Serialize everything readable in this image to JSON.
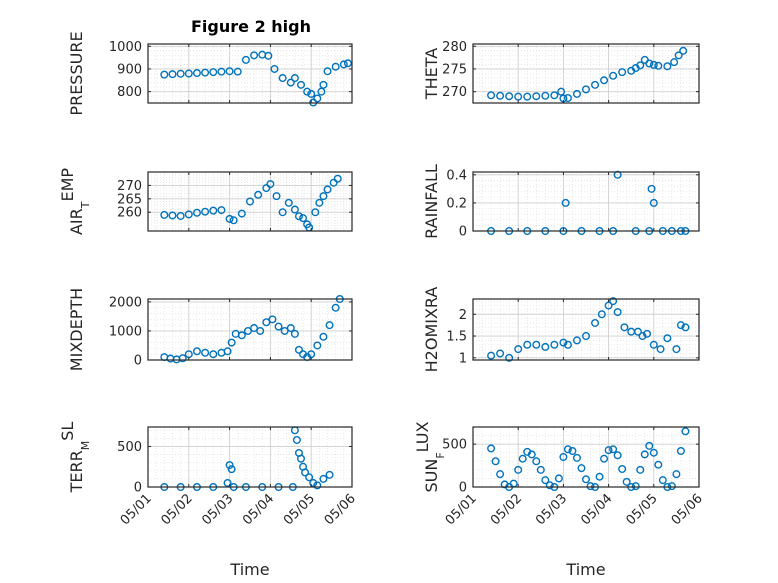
{
  "figure": {
    "title": "Figure 2 high"
  },
  "colors": {
    "marker": "#0072BD",
    "axes": "#262626",
    "grid": "#cfcfcf"
  },
  "chart_data": [
    {
      "type": "scatter",
      "id": "pressure",
      "ylabel": "PRESSURE",
      "xlabel": "",
      "ylim": [
        750,
        1010
      ],
      "yticks": [
        800,
        900,
        1000
      ],
      "yticklabels": [
        "800",
        "900",
        "1000"
      ],
      "xlim": [
        0,
        5
      ],
      "xticks": [
        0,
        1,
        2,
        3,
        4,
        5
      ],
      "xticklabels": [
        "05/01",
        "05/02",
        "05/03",
        "05/04",
        "05/05",
        "05/06"
      ],
      "series": [
        {
          "x": [
            0.4,
            0.6,
            0.8,
            1.0,
            1.2,
            1.4,
            1.6,
            1.8,
            2.0,
            2.2,
            2.4,
            2.6,
            2.8,
            2.95,
            3.1,
            3.3,
            3.5,
            3.6,
            3.75,
            3.9,
            4.0,
            4.05,
            4.15,
            4.25,
            4.3,
            4.4,
            4.6,
            4.8,
            4.9
          ],
          "y": [
            875,
            877,
            879,
            880,
            882,
            884,
            886,
            888,
            890,
            888,
            940,
            960,
            963,
            958,
            900,
            860,
            840,
            860,
            830,
            800,
            790,
            752,
            770,
            800,
            830,
            890,
            910,
            920,
            925
          ]
        }
      ]
    },
    {
      "type": "scatter",
      "id": "theta",
      "ylabel": "THETA",
      "xlabel": "",
      "ylim": [
        267.5,
        280.5
      ],
      "yticks": [
        270,
        275,
        280
      ],
      "yticklabels": [
        "270",
        "275",
        "280"
      ],
      "xlim": [
        0,
        5
      ],
      "xticks": [
        0,
        1,
        2,
        3,
        4,
        5
      ],
      "xticklabels": [
        "05/01",
        "05/02",
        "05/03",
        "05/04",
        "05/05",
        "05/06"
      ],
      "series": [
        {
          "x": [
            0.4,
            0.6,
            0.8,
            1.0,
            1.2,
            1.4,
            1.6,
            1.8,
            1.95,
            2.0,
            2.1,
            2.3,
            2.5,
            2.7,
            2.9,
            3.1,
            3.3,
            3.5,
            3.6,
            3.7,
            3.8,
            3.9,
            4.0,
            4.1,
            4.3,
            4.45,
            4.55,
            4.65
          ],
          "y": [
            269.2,
            269.1,
            269.0,
            268.9,
            268.9,
            269.0,
            269.1,
            269.2,
            270,
            268.5,
            268.6,
            269.5,
            270.5,
            271.5,
            272.5,
            273.5,
            274.3,
            274.6,
            275.2,
            275.8,
            277,
            276.2,
            275.9,
            275.7,
            275.6,
            276.5,
            278,
            279
          ]
        }
      ]
    },
    {
      "type": "scatter",
      "id": "air_temp",
      "ylabel": "AIR_TEMP",
      "xlabel": "",
      "ylim": [
        253,
        275
      ],
      "yticks": [
        260,
        265,
        270
      ],
      "yticklabels": [
        "260",
        "265",
        "270"
      ],
      "xlim": [
        0,
        5
      ],
      "xticks": [
        0,
        1,
        2,
        3,
        4,
        5
      ],
      "xticklabels": [
        "05/01",
        "05/02",
        "05/03",
        "05/04",
        "05/05",
        "05/06"
      ],
      "series": [
        {
          "x": [
            0.4,
            0.6,
            0.8,
            1.0,
            1.2,
            1.4,
            1.6,
            1.8,
            2.0,
            2.1,
            2.3,
            2.5,
            2.7,
            2.9,
            3.0,
            3.15,
            3.3,
            3.45,
            3.6,
            3.7,
            3.8,
            3.9,
            3.95,
            4.1,
            4.2,
            4.3,
            4.4,
            4.55,
            4.65
          ],
          "y": [
            259,
            258.8,
            258.6,
            259.2,
            259.8,
            260.2,
            260.6,
            260.8,
            257.5,
            257,
            259.5,
            264,
            266.5,
            269,
            270.5,
            266,
            260,
            263.5,
            261,
            258.5,
            257.8,
            255.5,
            254.3,
            260,
            263.5,
            266,
            268.5,
            271,
            272.5
          ]
        }
      ]
    },
    {
      "type": "scatter",
      "id": "rainfall",
      "ylabel": "RAINFALL",
      "xlabel": "",
      "ylim": [
        0,
        0.42
      ],
      "yticks": [
        0,
        0.2,
        0.4
      ],
      "yticklabels": [
        "0",
        "0.2",
        "0.4"
      ],
      "xlim": [
        0,
        5
      ],
      "xticks": [
        0,
        1,
        2,
        3,
        4,
        5
      ],
      "xticklabels": [
        "05/01",
        "05/02",
        "05/03",
        "05/04",
        "05/05",
        "05/06"
      ],
      "series": [
        {
          "x": [
            0.4,
            0.8,
            1.2,
            1.6,
            2.0,
            2.05,
            2.4,
            2.8,
            3.1,
            3.2,
            3.6,
            3.9,
            3.95,
            4.0,
            4.2,
            4.4,
            4.6,
            4.7
          ],
          "y": [
            0,
            0,
            0,
            0,
            0,
            0.2,
            0,
            0,
            0,
            0.4,
            0,
            0,
            0.3,
            0.2,
            0,
            0,
            0,
            0
          ]
        }
      ]
    },
    {
      "type": "scatter",
      "id": "mixdepth",
      "ylabel": "MIXDEPTH",
      "xlabel": "",
      "ylim": [
        0,
        2100
      ],
      "yticks": [
        0,
        1000,
        2000
      ],
      "yticklabels": [
        "0",
        "1000",
        "2000"
      ],
      "xlim": [
        0,
        5
      ],
      "xticks": [
        0,
        1,
        2,
        3,
        4,
        5
      ],
      "xticklabels": [
        "05/01",
        "05/02",
        "05/03",
        "05/04",
        "05/05",
        "05/06"
      ],
      "series": [
        {
          "x": [
            0.4,
            0.55,
            0.7,
            0.85,
            1.0,
            1.2,
            1.4,
            1.6,
            1.8,
            1.95,
            2.05,
            2.15,
            2.3,
            2.45,
            2.6,
            2.75,
            2.9,
            3.05,
            3.2,
            3.35,
            3.5,
            3.6,
            3.7,
            3.8,
            3.9,
            4.0,
            4.15,
            4.3,
            4.45,
            4.6,
            4.7
          ],
          "y": [
            100,
            50,
            20,
            60,
            200,
            300,
            250,
            200,
            250,
            300,
            600,
            900,
            850,
            1000,
            1100,
            1000,
            1300,
            1400,
            1150,
            1000,
            1100,
            900,
            350,
            200,
            100,
            200,
            500,
            800,
            1200,
            1800,
            2100
          ]
        }
      ]
    },
    {
      "type": "scatter",
      "id": "h2omixra",
      "ylabel": "H2OMIXRA",
      "xlabel": "",
      "ylim": [
        0.95,
        2.35
      ],
      "yticks": [
        1,
        1.5,
        2
      ],
      "yticklabels": [
        "1",
        "1.5",
        "2"
      ],
      "xlim": [
        0,
        5
      ],
      "xticks": [
        0,
        1,
        2,
        3,
        4,
        5
      ],
      "xticklabels": [
        "05/01",
        "05/02",
        "05/03",
        "05/04",
        "05/05",
        "05/06"
      ],
      "series": [
        {
          "x": [
            0.4,
            0.6,
            0.8,
            1.0,
            1.2,
            1.4,
            1.6,
            1.8,
            2.0,
            2.1,
            2.3,
            2.5,
            2.7,
            2.85,
            3.0,
            3.1,
            3.2,
            3.35,
            3.5,
            3.65,
            3.75,
            3.85,
            4.0,
            4.15,
            4.3,
            4.5,
            4.6,
            4.7
          ],
          "y": [
            1.05,
            1.1,
            1.0,
            1.2,
            1.3,
            1.3,
            1.25,
            1.3,
            1.35,
            1.3,
            1.4,
            1.5,
            1.8,
            2.0,
            2.2,
            2.3,
            2.05,
            1.7,
            1.6,
            1.6,
            1.5,
            1.55,
            1.3,
            1.2,
            1.45,
            1.2,
            1.75,
            1.7
          ]
        }
      ]
    },
    {
      "type": "scatter",
      "id": "terr_msl",
      "ylabel": "TERR_MSL",
      "xlabel": "Time",
      "ylim": [
        0,
        740
      ],
      "yticks": [
        0,
        500
      ],
      "yticklabels": [
        "0",
        "500"
      ],
      "xlim": [
        0,
        5
      ],
      "xticks": [
        0,
        1,
        2,
        3,
        4,
        5
      ],
      "xticklabels": [
        "05/01",
        "05/02",
        "05/03",
        "05/04",
        "05/05",
        "05/06"
      ],
      "series": [
        {
          "x": [
            0.4,
            0.8,
            1.2,
            1.6,
            1.95,
            2.0,
            2.05,
            2.1,
            2.4,
            2.8,
            3.2,
            3.55,
            3.6,
            3.65,
            3.7,
            3.75,
            3.8,
            3.85,
            3.95,
            4.05,
            4.15,
            4.3,
            4.45
          ],
          "y": [
            0,
            0,
            0,
            0,
            50,
            270,
            220,
            0,
            0,
            0,
            0,
            0,
            700,
            580,
            420,
            350,
            250,
            180,
            120,
            50,
            20,
            100,
            150
          ]
        }
      ]
    },
    {
      "type": "scatter",
      "id": "sun_flux",
      "ylabel": "SUN_FLUX",
      "xlabel": "Time",
      "ylim": [
        0,
        700
      ],
      "yticks": [
        0,
        500
      ],
      "yticklabels": [
        "0",
        "500"
      ],
      "xlim": [
        0,
        5
      ],
      "xticks": [
        0,
        1,
        2,
        3,
        4,
        5
      ],
      "xticklabels": [
        "05/01",
        "05/02",
        "05/03",
        "05/04",
        "05/05",
        "05/06"
      ],
      "series": [
        {
          "x": [
            0.4,
            0.5,
            0.6,
            0.7,
            0.8,
            0.9,
            1.0,
            1.1,
            1.2,
            1.3,
            1.4,
            1.5,
            1.6,
            1.7,
            1.8,
            1.9,
            2.0,
            2.1,
            2.2,
            2.3,
            2.4,
            2.5,
            2.6,
            2.7,
            2.8,
            2.9,
            3.0,
            3.1,
            3.2,
            3.3,
            3.4,
            3.5,
            3.6,
            3.7,
            3.8,
            3.9,
            4.0,
            4.1,
            4.2,
            4.3,
            4.4,
            4.5,
            4.6,
            4.7
          ],
          "y": [
            450,
            300,
            150,
            30,
            0,
            40,
            200,
            330,
            410,
            380,
            300,
            200,
            80,
            20,
            0,
            100,
            350,
            440,
            420,
            340,
            220,
            90,
            10,
            0,
            120,
            330,
            430,
            440,
            370,
            210,
            60,
            0,
            10,
            200,
            380,
            480,
            400,
            260,
            80,
            0,
            10,
            150,
            420,
            650
          ]
        }
      ]
    }
  ]
}
